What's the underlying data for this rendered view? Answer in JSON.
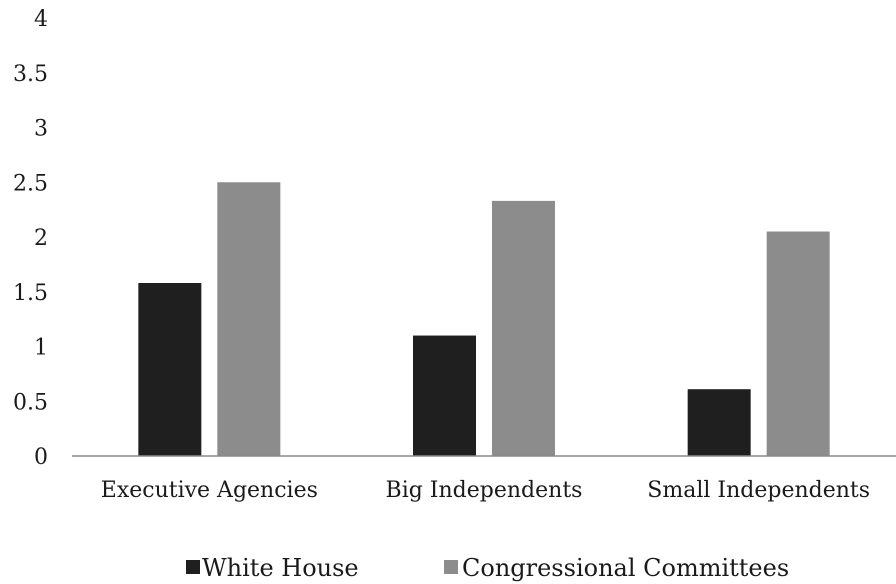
{
  "chart_data": {
    "type": "bar",
    "title": "",
    "xlabel": "",
    "ylabel": "",
    "categories": [
      "Executive Agencies",
      "Big Independents",
      "Small Independents"
    ],
    "series": [
      {
        "name": "White House",
        "values": [
          1.58,
          1.1,
          0.61
        ],
        "color": "#1f1f1f"
      },
      {
        "name": "Congressional Committees",
        "values": [
          2.5,
          2.33,
          2.05
        ],
        "color": "#8c8c8c"
      }
    ],
    "ylim": [
      0,
      4
    ],
    "yticks": [
      "0",
      "0.5",
      "1",
      "1.5",
      "2",
      "2.5",
      "3",
      "3.5",
      "4"
    ],
    "grid": false,
    "legend_position": "bottom"
  }
}
